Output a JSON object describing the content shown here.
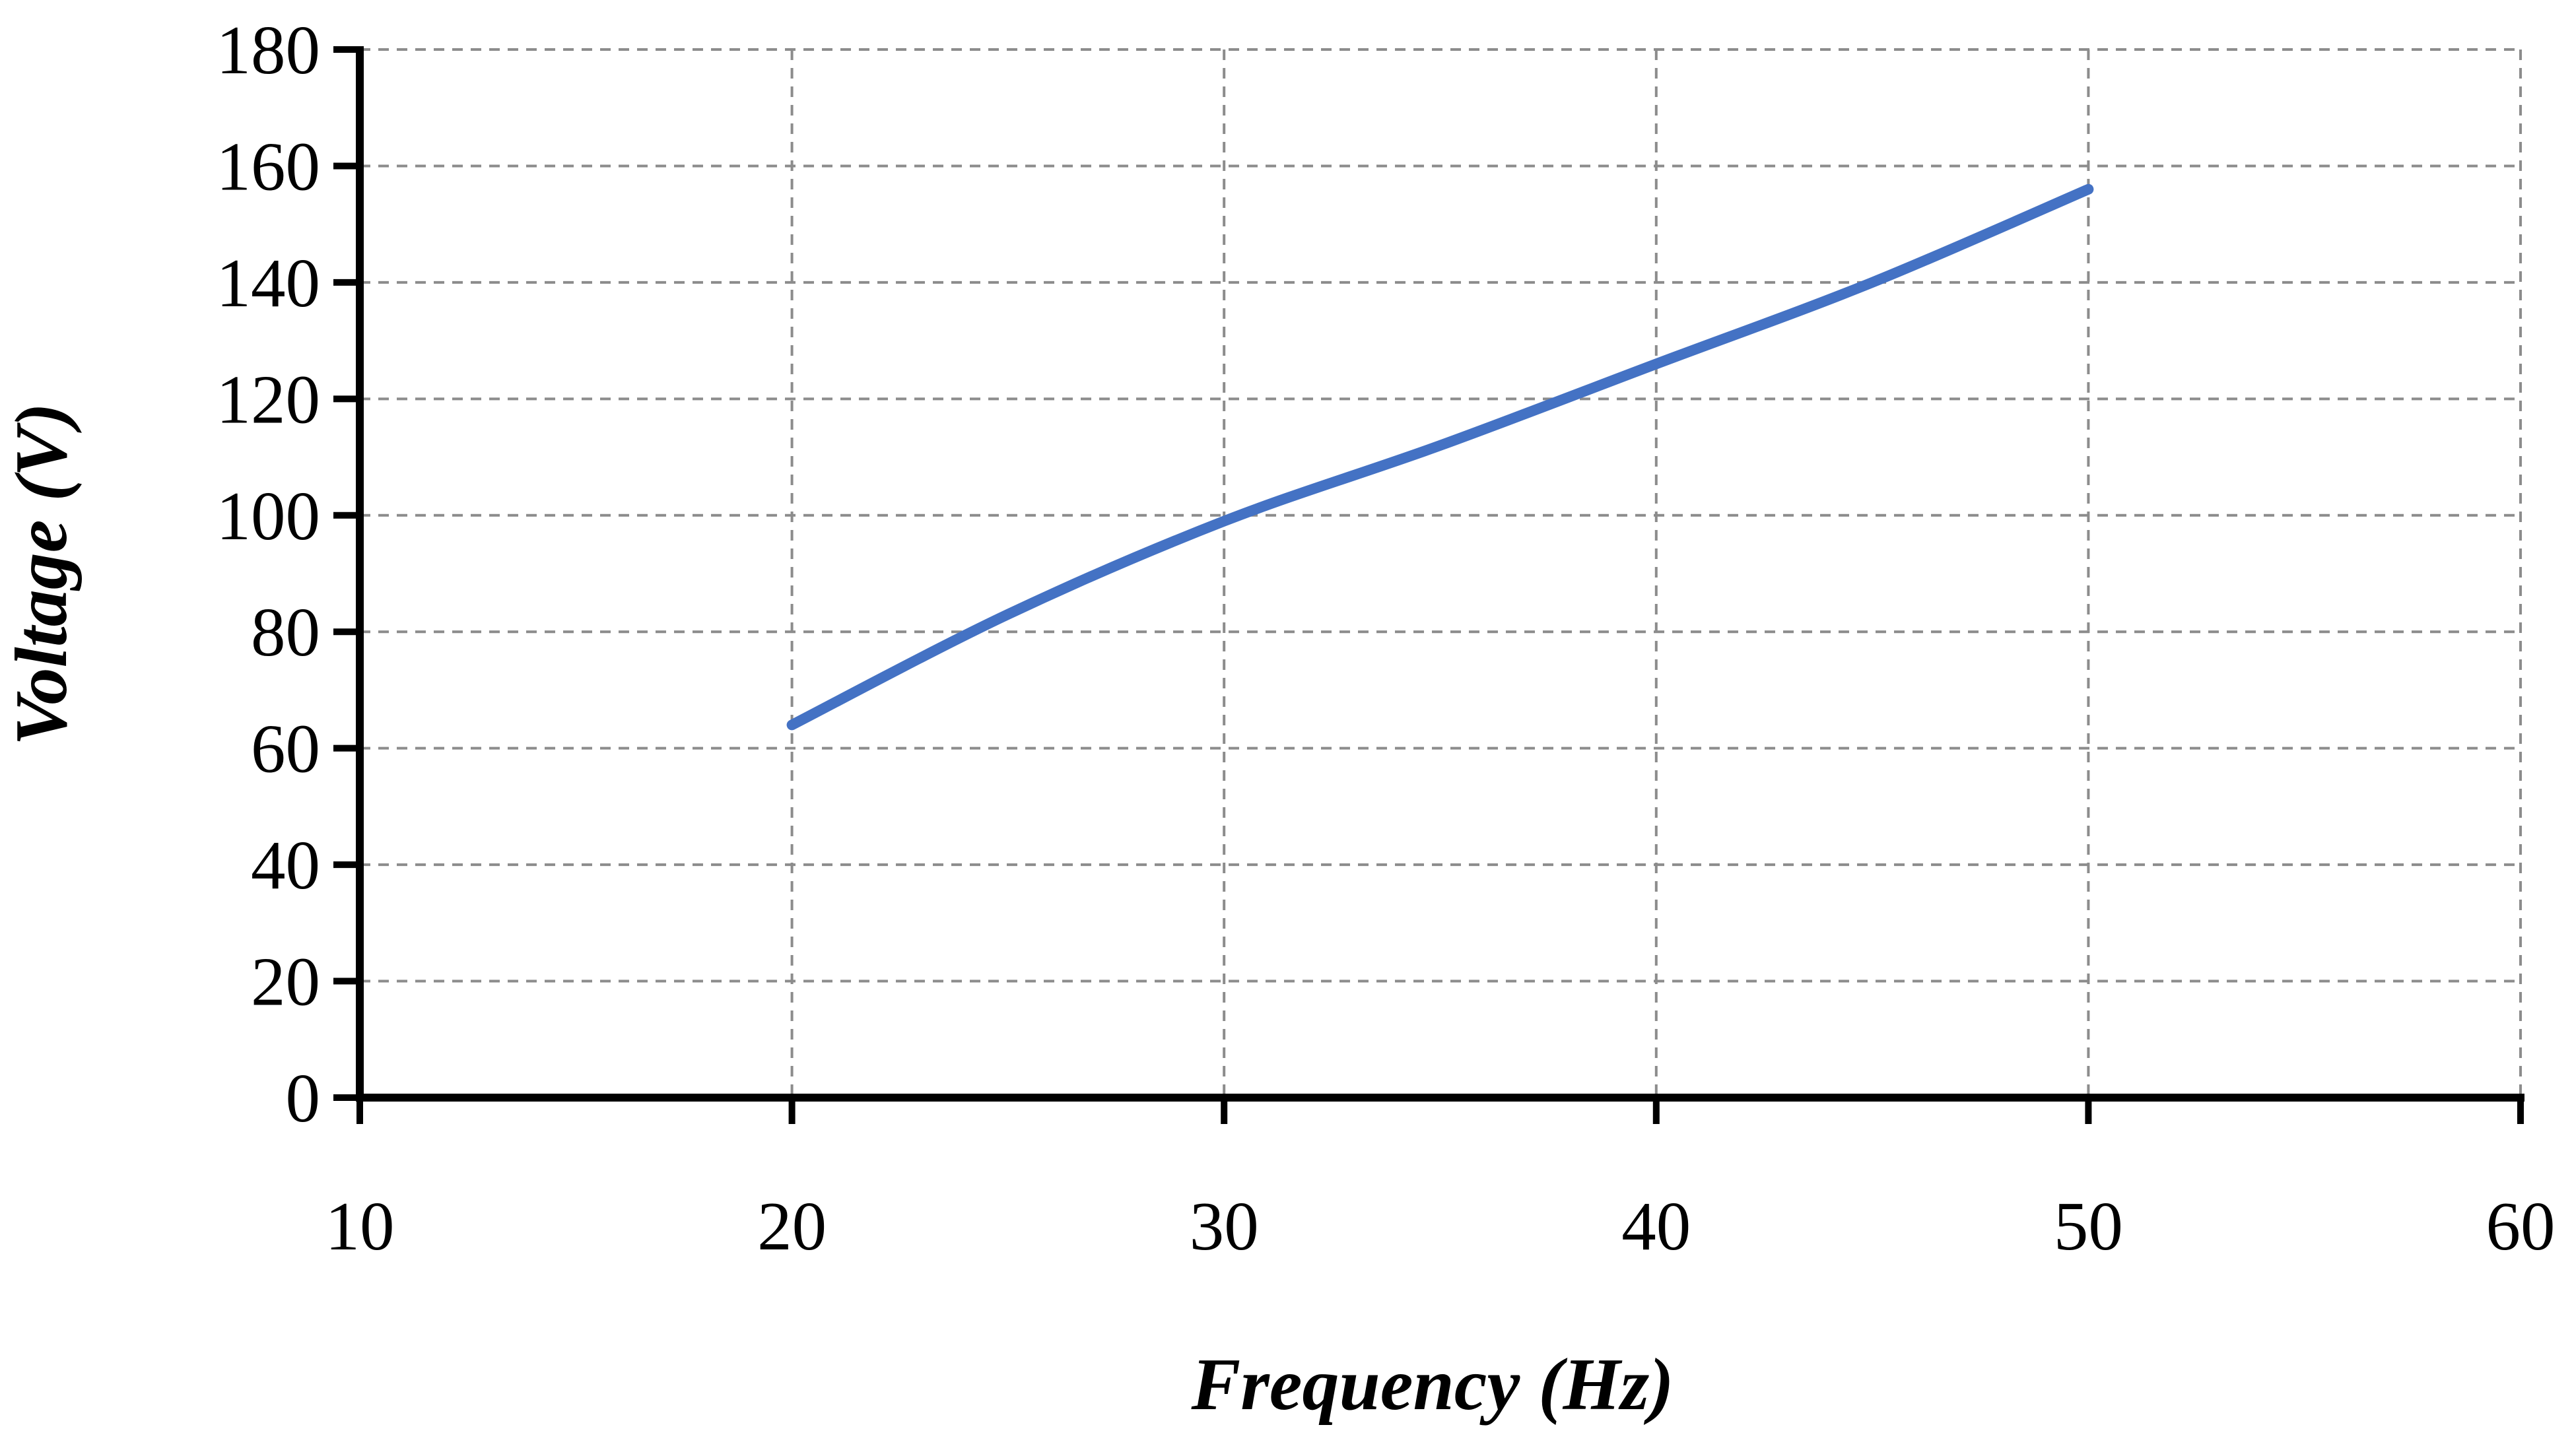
{
  "chart_data": {
    "type": "line",
    "title": "",
    "xlabel": "Frequency (Hz)",
    "ylabel": "Voltage (V)",
    "xlim": [
      10,
      60
    ],
    "ylim": [
      0,
      180
    ],
    "x_ticks": [
      10,
      20,
      30,
      40,
      50,
      60
    ],
    "y_ticks": [
      0,
      20,
      40,
      60,
      80,
      100,
      120,
      140,
      160,
      180
    ],
    "grid": true,
    "legend": "none",
    "series": [
      {
        "color": "#4472C4",
        "x": [
          20,
          25,
          30,
          35,
          40,
          45,
          50
        ],
        "y": [
          64,
          83,
          99,
          112,
          126,
          140,
          156
        ]
      }
    ]
  }
}
